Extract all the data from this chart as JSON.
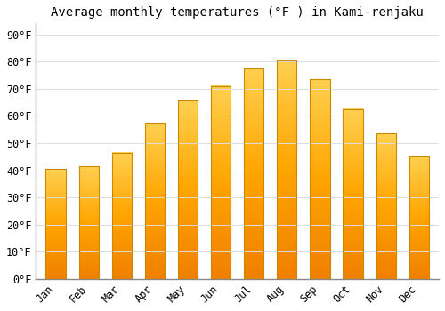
{
  "title": "Average monthly temperatures (°F ) in Kami-renjaku",
  "months": [
    "Jan",
    "Feb",
    "Mar",
    "Apr",
    "May",
    "Jun",
    "Jul",
    "Aug",
    "Sep",
    "Oct",
    "Nov",
    "Dec"
  ],
  "values": [
    40.5,
    41.5,
    46.5,
    57.5,
    65.5,
    71.0,
    77.5,
    80.5,
    73.5,
    62.5,
    53.5,
    45.0
  ],
  "bar_color": "#FFA500",
  "bar_color_light": "#FFD050",
  "bar_color_dark": "#F08000",
  "yticks": [
    0,
    10,
    20,
    30,
    40,
    50,
    60,
    70,
    80,
    90
  ],
  "ytick_labels": [
    "0°F",
    "10°F",
    "20°F",
    "30°F",
    "40°F",
    "50°F",
    "60°F",
    "70°F",
    "80°F",
    "90°F"
  ],
  "ylim": [
    0,
    94
  ],
  "background_color": "#FFFFFF",
  "grid_color": "#DDDDDD",
  "title_fontsize": 10,
  "tick_fontsize": 8.5,
  "bar_width": 0.6
}
